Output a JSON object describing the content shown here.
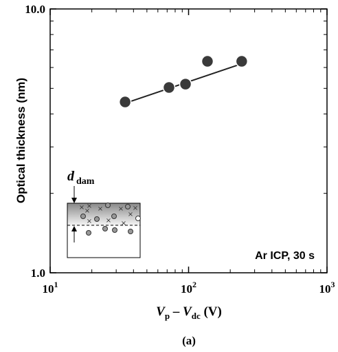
{
  "chart_data": {
    "type": "scatter",
    "ylabel": "Optical thickness (nm)",
    "xlabel": {
      "v1": "V",
      "sub1": "p",
      "minus": " – ",
      "v2": "V",
      "sub2": "dc",
      "unit": " (V)"
    },
    "annotation": "Ar ICP, 30 s",
    "caption": "(a)",
    "inset_label": {
      "main": "d",
      "sub": "dam"
    },
    "log_x": true,
    "log_y": true,
    "xlim": [
      10,
      1000
    ],
    "ylim": [
      1,
      10
    ],
    "xticks": [
      {
        "value": 10,
        "label": "10",
        "exponent": "1"
      },
      {
        "value": 100,
        "label": "10",
        "exponent": "2"
      },
      {
        "value": 1000,
        "label": "10",
        "exponent": "3"
      }
    ],
    "yticks": [
      {
        "value": 1,
        "label": "1.0"
      },
      {
        "value": 10,
        "label": "10.0"
      }
    ],
    "xminorticks": [
      20,
      30,
      40,
      50,
      60,
      70,
      80,
      90,
      200,
      300,
      400,
      500,
      600,
      700,
      800,
      900
    ],
    "yminorticks": [
      2,
      3,
      4,
      5,
      6,
      7,
      8,
      9
    ],
    "x": [
      34.8,
      72.2,
      95,
      136.9,
      242
    ],
    "values": [
      4.44,
      5.04,
      5.19,
      6.33,
      6.33
    ],
    "color": "#3a3a3a",
    "fit": {
      "x": [
        33,
        242
      ],
      "y": [
        4.35,
        6.2
      ],
      "color": "#222222"
    }
  }
}
